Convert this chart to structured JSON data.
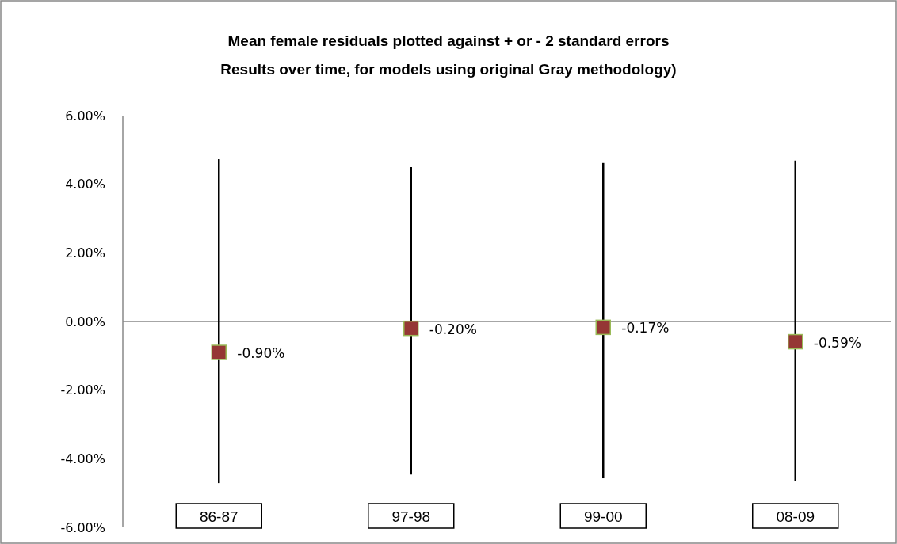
{
  "chart_data": {
    "type": "scatter",
    "title": "Mean female residuals plotted against + or - 2 standard errors",
    "subtitle": "Results over time, for models using original Gray methodology)",
    "categories": [
      "86-87",
      "97-98",
      "99-00",
      "08-09"
    ],
    "series": [
      {
        "type": "bar",
        "color": "#000000",
        "base": [
          -4.71,
          -4.46,
          -4.57,
          -4.64
        ],
        "values": [
          9.44,
          8.96,
          9.19,
          9.33
        ]
      },
      {
        "color": "#953735",
        "values": [
          -0.9,
          -0.2,
          -0.17,
          -0.59
        ],
        "value_labels": [
          "-0.90%",
          "-0.20%",
          "-0.17%",
          "-0.59%"
        ]
      }
    ],
    "marker": "square",
    "ylim": [
      -6,
      6
    ],
    "yticks": [
      {
        "value": -6,
        "label": "-6.00%"
      },
      {
        "value": -4,
        "label": "-4.00%"
      },
      {
        "value": -2,
        "label": "-2.00%"
      },
      {
        "value": 0,
        "label": "0.00%"
      },
      {
        "value": 2,
        "label": "2.00%"
      },
      {
        "value": 4,
        "label": "4.00%"
      },
      {
        "value": 6,
        "label": "6.00%"
      }
    ],
    "ref_lines": [
      {
        "axis": "y",
        "value": 0,
        "color": "#888888"
      }
    ],
    "grid": false,
    "legend": false
  }
}
